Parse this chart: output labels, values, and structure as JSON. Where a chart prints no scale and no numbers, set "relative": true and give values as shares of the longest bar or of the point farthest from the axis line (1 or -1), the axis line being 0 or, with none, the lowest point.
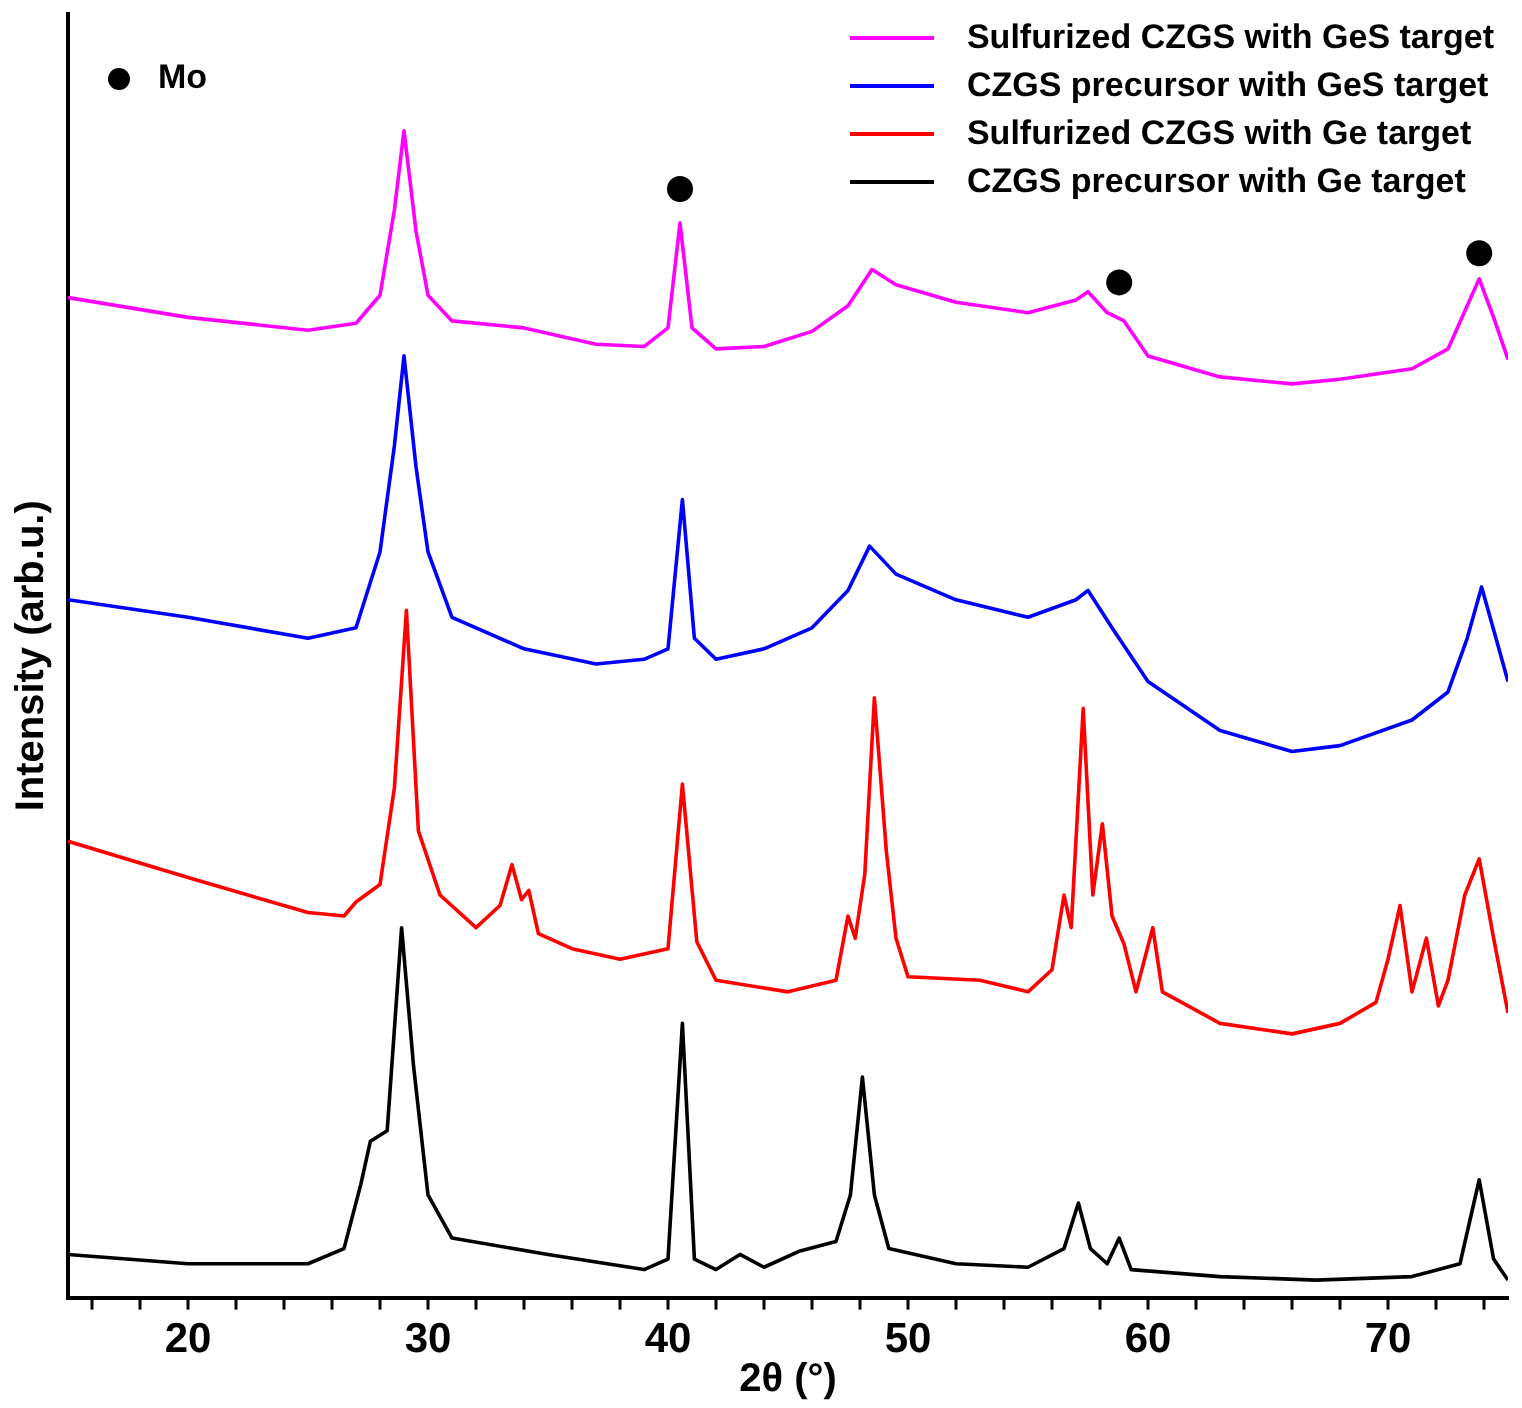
{
  "chart_data": {
    "type": "line",
    "relative": true,
    "xlabel": "2θ (°)",
    "ylabel": "Intensity (arb.u.)",
    "xlim": [
      15,
      75
    ],
    "xticks": [
      {
        "value": 16,
        "label": null
      },
      {
        "value": 18,
        "label": null
      },
      20,
      {
        "value": 22,
        "label": null
      },
      {
        "value": 24,
        "label": null
      },
      {
        "value": 26,
        "label": null
      },
      {
        "value": 28,
        "label": null
      },
      30,
      {
        "value": 32,
        "label": null
      },
      {
        "value": 34,
        "label": null
      },
      {
        "value": 36,
        "label": null
      },
      {
        "value": 38,
        "label": null
      },
      40,
      {
        "value": 42,
        "label": null
      },
      {
        "value": 44,
        "label": null
      },
      {
        "value": 46,
        "label": null
      },
      {
        "value": 48,
        "label": null
      },
      50,
      {
        "value": 52,
        "label": null
      },
      {
        "value": 54,
        "label": null
      },
      {
        "value": 56,
        "label": null
      },
      {
        "value": 58,
        "label": null
      },
      60,
      {
        "value": 62,
        "label": null
      },
      {
        "value": 64,
        "label": null
      },
      {
        "value": 66,
        "label": null
      },
      {
        "value": 68,
        "label": null
      },
      70,
      {
        "value": 72,
        "label": null
      },
      {
        "value": 74,
        "label": null
      }
    ],
    "grid": false,
    "legend": "top",
    "marker": "none",
    "line_style": "solid",
    "series": [
      {
        "name": "Sulfurized CZGS with GeS target",
        "color": "#ff00ff",
        "x": [
          15,
          20,
          25,
          27,
          28,
          28.6,
          29,
          29.5,
          30,
          31,
          34,
          37,
          39,
          40,
          40.5,
          41,
          42,
          44,
          46,
          47.5,
          48.5,
          49.5,
          52,
          55,
          57,
          57.5,
          58.3,
          59,
          60,
          63,
          66,
          68,
          71,
          72.5,
          73.3,
          73.8,
          74.4,
          75
        ],
        "values": [
          0.857,
          0.84,
          0.829,
          0.835,
          0.859,
          0.932,
          1.0,
          0.914,
          0.859,
          0.837,
          0.831,
          0.817,
          0.815,
          0.831,
          0.921,
          0.831,
          0.813,
          0.815,
          0.828,
          0.85,
          0.881,
          0.868,
          0.853,
          0.844,
          0.855,
          0.862,
          0.844,
          0.837,
          0.807,
          0.789,
          0.783,
          0.787,
          0.796,
          0.813,
          0.85,
          0.873,
          0.84,
          0.804
        ]
      },
      {
        "name": "CZGS precursor with GeS target",
        "color": "#0000ff",
        "x": [
          15,
          20,
          25,
          27,
          28,
          28.6,
          29,
          29.5,
          30,
          31,
          34,
          37,
          39,
          40,
          40.6,
          41.1,
          42,
          44,
          46,
          47.5,
          48.4,
          49.5,
          52,
          55,
          57,
          57.5,
          58.5,
          60,
          63,
          66,
          68,
          71,
          72.5,
          73.3,
          73.9,
          74.5,
          75
        ],
        "values": [
          0.598,
          0.583,
          0.565,
          0.574,
          0.639,
          0.73,
          0.807,
          0.712,
          0.639,
          0.583,
          0.556,
          0.543,
          0.547,
          0.556,
          0.684,
          0.565,
          0.547,
          0.556,
          0.574,
          0.606,
          0.644,
          0.62,
          0.598,
          0.583,
          0.598,
          0.606,
          0.574,
          0.528,
          0.486,
          0.468,
          0.473,
          0.495,
          0.519,
          0.565,
          0.609,
          0.565,
          0.528
        ]
      },
      {
        "name": "Sulfurized CZGS with Ge target",
        "color": "#ff0000",
        "x": [
          15,
          20,
          25,
          26.5,
          27,
          28,
          28.6,
          29.1,
          29.6,
          30.5,
          32,
          33,
          33.5,
          33.9,
          34.2,
          34.6,
          36,
          38,
          40,
          40.6,
          41.2,
          42,
          45,
          47,
          47.5,
          47.8,
          48.2,
          48.6,
          49.1,
          49.5,
          50,
          53,
          55,
          56,
          56.5,
          56.8,
          57.3,
          57.7,
          58.1,
          58.5,
          59,
          59.5,
          60.2,
          60.6,
          63,
          66,
          68,
          69.5,
          70,
          70.5,
          71,
          71.6,
          72.1,
          72.5,
          73.2,
          73.8,
          74.4,
          75
        ],
        "values": [
          0.391,
          0.36,
          0.33,
          0.327,
          0.339,
          0.354,
          0.437,
          0.589,
          0.4,
          0.345,
          0.317,
          0.336,
          0.371,
          0.341,
          0.349,
          0.312,
          0.299,
          0.29,
          0.299,
          0.44,
          0.305,
          0.272,
          0.262,
          0.272,
          0.327,
          0.308,
          0.363,
          0.514,
          0.382,
          0.308,
          0.275,
          0.272,
          0.262,
          0.281,
          0.345,
          0.317,
          0.505,
          0.345,
          0.406,
          0.327,
          0.303,
          0.262,
          0.317,
          0.262,
          0.235,
          0.226,
          0.235,
          0.253,
          0.29,
          0.336,
          0.262,
          0.308,
          0.25,
          0.272,
          0.345,
          0.376,
          0.308,
          0.244
        ]
      },
      {
        "name": "CZGS precursor with Ge target",
        "color": "#000000",
        "x": [
          15,
          20,
          25,
          26.5,
          27.2,
          27.6,
          28.3,
          28.9,
          29.4,
          30,
          31,
          35,
          39,
          40,
          40.6,
          41.1,
          42,
          43,
          44,
          45.5,
          47,
          47.6,
          48.1,
          48.6,
          49.2,
          52,
          55,
          56.5,
          57.1,
          57.6,
          58.3,
          58.8,
          59.3,
          63,
          67,
          71,
          73,
          73.8,
          74.4,
          75
        ],
        "values": [
          0.037,
          0.029,
          0.029,
          0.042,
          0.097,
          0.134,
          0.143,
          0.317,
          0.198,
          0.088,
          0.051,
          0.037,
          0.024,
          0.033,
          0.235,
          0.033,
          0.024,
          0.037,
          0.026,
          0.04,
          0.048,
          0.088,
          0.189,
          0.088,
          0.042,
          0.029,
          0.026,
          0.042,
          0.081,
          0.042,
          0.029,
          0.051,
          0.024,
          0.018,
          0.015,
          0.018,
          0.029,
          0.101,
          0.033,
          0.015
        ]
      },
      {
        "name": "Mo",
        "type": "scatter",
        "marker": "circle",
        "color": "#000000",
        "x": [
          40.5,
          58.8,
          73.8
        ],
        "values": [
          0.95,
          0.87,
          0.895
        ]
      }
    ]
  }
}
